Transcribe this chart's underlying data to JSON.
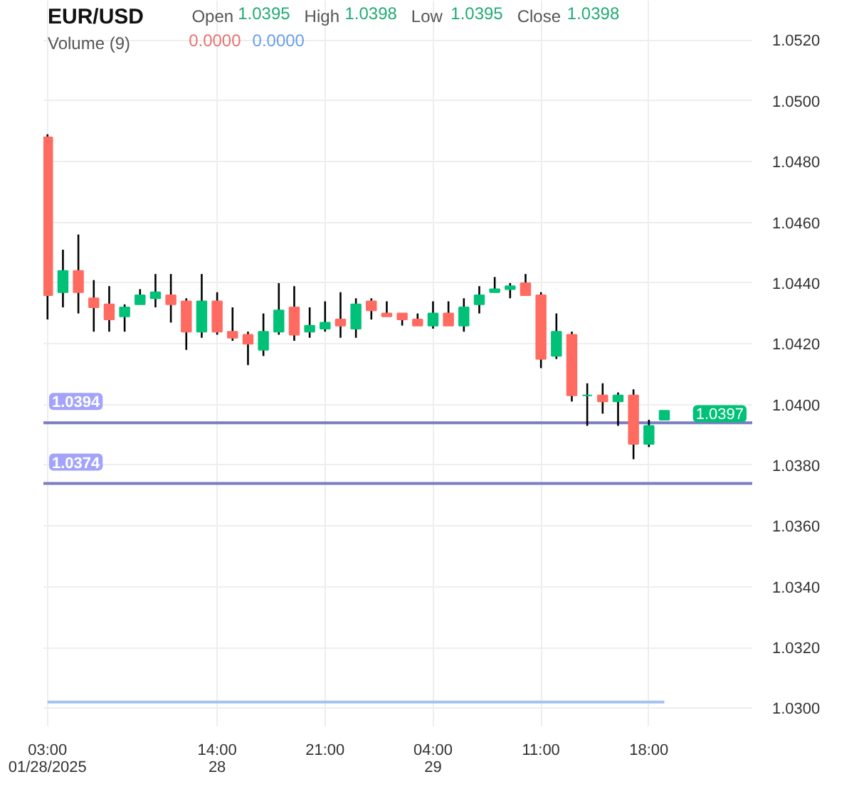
{
  "chart_data": {
    "type": "candlestick",
    "title": "EUR/USD",
    "subtitle": "Volume (9)",
    "x": [
      "2025-01-28T03:00",
      "2025-01-28T04:00",
      "2025-01-28T05:00",
      "2025-01-28T06:00",
      "2025-01-28T07:00",
      "2025-01-28T08:00",
      "2025-01-28T09:00",
      "2025-01-28T10:00",
      "2025-01-28T11:00",
      "2025-01-28T12:00",
      "2025-01-28T13:00",
      "2025-01-28T14:00",
      "2025-01-28T15:00",
      "2025-01-28T16:00",
      "2025-01-28T17:00",
      "2025-01-28T18:00",
      "2025-01-28T19:00",
      "2025-01-28T20:00",
      "2025-01-28T21:00",
      "2025-01-28T22:00",
      "2025-01-28T23:00",
      "2025-01-29T00:00",
      "2025-01-29T01:00",
      "2025-01-29T02:00",
      "2025-01-29T03:00",
      "2025-01-29T04:00",
      "2025-01-29T05:00",
      "2025-01-29T06:00",
      "2025-01-29T07:00",
      "2025-01-29T08:00",
      "2025-01-29T09:00",
      "2025-01-29T10:00",
      "2025-01-29T11:00",
      "2025-01-29T12:00",
      "2025-01-29T13:00",
      "2025-01-29T14:00",
      "2025-01-29T15:00",
      "2025-01-29T16:00",
      "2025-01-29T17:00",
      "2025-01-29T18:00",
      "2025-01-29T19:00"
    ],
    "ohlc": [
      [
        1.0488,
        1.0489,
        1.0428,
        1.0436
      ],
      [
        1.0437,
        1.0451,
        1.0432,
        1.0444
      ],
      [
        1.0444,
        1.0456,
        1.043,
        1.0437
      ],
      [
        1.0435,
        1.0441,
        1.0424,
        1.0432
      ],
      [
        1.0433,
        1.0439,
        1.0424,
        1.0428
      ],
      [
        1.0429,
        1.0433,
        1.0424,
        1.0432
      ],
      [
        1.0433,
        1.0438,
        1.0433,
        1.0436
      ],
      [
        1.0435,
        1.0443,
        1.0432,
        1.0437
      ],
      [
        1.0436,
        1.0443,
        1.0427,
        1.0433
      ],
      [
        1.0434,
        1.0435,
        1.0418,
        1.0424
      ],
      [
        1.0424,
        1.0443,
        1.0422,
        1.0434
      ],
      [
        1.0434,
        1.0437,
        1.0423,
        1.0424
      ],
      [
        1.0424,
        1.0432,
        1.0421,
        1.0422
      ],
      [
        1.0423,
        1.0424,
        1.0413,
        1.042
      ],
      [
        1.0418,
        1.043,
        1.0416,
        1.0424
      ],
      [
        1.0424,
        1.044,
        1.0423,
        1.0431
      ],
      [
        1.0432,
        1.0439,
        1.0421,
        1.0423
      ],
      [
        1.0424,
        1.0432,
        1.0422,
        1.0426
      ],
      [
        1.0425,
        1.0434,
        1.0424,
        1.0427
      ],
      [
        1.0428,
        1.0437,
        1.0422,
        1.0426
      ],
      [
        1.0425,
        1.0435,
        1.0422,
        1.0433
      ],
      [
        1.0434,
        1.0435,
        1.0428,
        1.0431
      ],
      [
        1.043,
        1.0434,
        1.0429,
        1.0429
      ],
      [
        1.043,
        1.043,
        1.0426,
        1.0428
      ],
      [
        1.0428,
        1.043,
        1.0426,
        1.0426
      ],
      [
        1.0426,
        1.0434,
        1.0425,
        1.043
      ],
      [
        1.043,
        1.0434,
        1.0426,
        1.0426
      ],
      [
        1.0426,
        1.0435,
        1.0424,
        1.0432
      ],
      [
        1.0433,
        1.0439,
        1.043,
        1.0436
      ],
      [
        1.0437,
        1.0442,
        1.0437,
        1.0438
      ],
      [
        1.0438,
        1.044,
        1.0435,
        1.0439
      ],
      [
        1.044,
        1.0443,
        1.0436,
        1.0436
      ],
      [
        1.0436,
        1.0437,
        1.0412,
        1.0415
      ],
      [
        1.0416,
        1.043,
        1.0415,
        1.0424
      ],
      [
        1.0423,
        1.0424,
        1.0401,
        1.0403
      ],
      [
        1.0403,
        1.0407,
        1.0393,
        1.0403
      ],
      [
        1.0403,
        1.0407,
        1.0397,
        1.0401
      ],
      [
        1.0401,
        1.0404,
        1.0393,
        1.0403
      ],
      [
        1.0403,
        1.0405,
        1.0382,
        1.0387
      ],
      [
        1.0387,
        1.0395,
        1.0386,
        1.0393
      ],
      [
        1.0395,
        1.0398,
        1.0395,
        1.0398
      ]
    ],
    "colors": [
      "#ff6b61",
      "#00c177",
      "#ff6b61",
      "#ff6b61",
      "#ff6b61",
      "#00c177",
      "#00c177",
      "#00c177",
      "#ff6b61",
      "#ff6b61",
      "#00c177",
      "#ff6b61",
      "#ff6b61",
      "#ff6b61",
      "#00c177",
      "#00c177",
      "#ff6b61",
      "#00c177",
      "#00c177",
      "#ff6b61",
      "#00c177",
      "#ff6b61",
      "#ff6b61",
      "#ff6b61",
      "#ff6b61",
      "#00c177",
      "#ff6b61",
      "#00c177",
      "#00c177",
      "#00c177",
      "#00c177",
      "#ff6b61",
      "#ff6b61",
      "#00c177",
      "#ff6b61",
      "#00c177",
      "#ff6b61",
      "#00c177",
      "#ff6b61",
      "#00c177",
      "#00c177"
    ],
    "series": [
      {
        "type": "line",
        "color": "#a4c2f4",
        "x": [
          "2025-01-28T03:00",
          "2025-01-29T19:00"
        ],
        "values": [
          1.0302,
          1.0302
        ]
      }
    ],
    "xlim": [
      "2025-01-28T02:44",
      "2025-01-30T00:42"
    ],
    "xticks": [
      {
        "value": "2025-01-28T03:00",
        "label": "03:00\n01/28/2025"
      },
      {
        "value": "2025-01-28T14:00",
        "label": "14:00\n28"
      },
      {
        "value": "2025-01-28T21:00",
        "label": "21:00"
      },
      {
        "value": "2025-01-29T04:00",
        "label": "04:00\n29"
      },
      {
        "value": "2025-01-29T11:00",
        "label": "11:00"
      },
      {
        "value": "2025-01-29T18:00",
        "label": "18:00"
      }
    ],
    "ylim": [
      1.0294,
      1.0533
    ],
    "yticks": [
      {
        "value": 1.03,
        "label": "1.0300"
      },
      {
        "value": 1.032,
        "label": "1.0320"
      },
      {
        "value": 1.034,
        "label": "1.0340"
      },
      {
        "value": 1.036,
        "label": "1.0360"
      },
      {
        "value": 1.038,
        "label": "1.0380"
      },
      {
        "value": 1.04,
        "label": "1.0400"
      },
      {
        "value": 1.042,
        "label": "1.0420"
      },
      {
        "value": 1.044,
        "label": "1.0440"
      },
      {
        "value": 1.046,
        "label": "1.0460"
      },
      {
        "value": 1.048,
        "label": "1.0480"
      },
      {
        "value": 1.05,
        "label": "1.0500"
      },
      {
        "value": 1.052,
        "label": "1.0520"
      }
    ],
    "grid": true,
    "ref_lines": [
      {
        "axis": "y",
        "value": 1.0394,
        "label": "1.0394",
        "color": "#7a7dc2"
      },
      {
        "axis": "y",
        "value": 1.0374,
        "label": "1.0374",
        "color": "#7a7dc2"
      }
    ],
    "annotations": [
      "Open",
      "1.0395",
      "High",
      "1.0398",
      "Low",
      "1.0395",
      "Close",
      "1.0398",
      "0.0000",
      "0.0000",
      {
        "text": "1.0397",
        "y": 1.0397
      }
    ]
  }
}
